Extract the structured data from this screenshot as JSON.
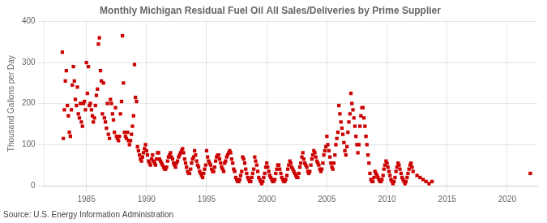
{
  "chart_data": {
    "type": "scatter",
    "title": "Monthly Michigan Residual Fuel Oil All Sales/Deliveries by Prime Supplier",
    "ylabel": "Thousand Gallons per Day",
    "annotation": "Source: U.S. Energy Information Administration",
    "color": "#cc0000",
    "marker": "square",
    "grid": true,
    "xlim": [
      1981.5,
      2022.5
    ],
    "ylim": [
      0,
      400
    ],
    "xticks": [
      1985,
      1990,
      1995,
      2000,
      2005,
      2010,
      2015,
      2020
    ],
    "yticks": [
      0,
      100,
      200,
      300,
      400
    ],
    "x": [
      1983.0,
      1983.08,
      1983.17,
      1983.25,
      1983.33,
      1983.42,
      1983.5,
      1983.58,
      1983.67,
      1983.75,
      1983.83,
      1983.92,
      1984.0,
      1984.08,
      1984.17,
      1984.25,
      1984.33,
      1984.42,
      1984.5,
      1984.58,
      1984.67,
      1984.75,
      1984.83,
      1984.92,
      1985.0,
      1985.08,
      1985.17,
      1985.25,
      1985.33,
      1985.42,
      1985.5,
      1985.58,
      1985.67,
      1985.75,
      1985.83,
      1985.92,
      1986.0,
      1986.08,
      1986.17,
      1986.25,
      1986.33,
      1986.42,
      1986.5,
      1986.58,
      1986.67,
      1986.75,
      1986.83,
      1986.92,
      1987.0,
      1987.08,
      1987.17,
      1987.25,
      1987.33,
      1987.42,
      1987.5,
      1987.58,
      1987.67,
      1987.75,
      1987.83,
      1987.92,
      1988.0,
      1988.08,
      1988.17,
      1988.25,
      1988.33,
      1988.42,
      1988.5,
      1988.58,
      1988.67,
      1988.75,
      1988.83,
      1988.92,
      1989.0,
      1989.08,
      1989.17,
      1989.25,
      1989.33,
      1989.42,
      1989.5,
      1989.58,
      1989.67,
      1989.75,
      1989.83,
      1989.92,
      1990.0,
      1990.08,
      1990.17,
      1990.25,
      1990.33,
      1990.42,
      1990.5,
      1990.58,
      1990.67,
      1990.75,
      1990.83,
      1990.92,
      1991.0,
      1991.08,
      1991.17,
      1991.25,
      1991.33,
      1991.42,
      1991.5,
      1991.58,
      1991.67,
      1991.75,
      1991.83,
      1991.92,
      1992.0,
      1992.08,
      1992.17,
      1992.25,
      1992.33,
      1992.42,
      1992.5,
      1992.58,
      1992.67,
      1992.75,
      1992.83,
      1992.92,
      1993.0,
      1993.08,
      1993.17,
      1993.25,
      1993.33,
      1993.42,
      1993.5,
      1993.58,
      1993.67,
      1993.75,
      1993.83,
      1993.92,
      1994.0,
      1994.08,
      1994.17,
      1994.25,
      1994.33,
      1994.42,
      1994.5,
      1994.58,
      1994.67,
      1994.75,
      1994.83,
      1994.92,
      1995.0,
      1995.08,
      1995.17,
      1995.25,
      1995.33,
      1995.42,
      1995.5,
      1995.58,
      1995.67,
      1995.75,
      1995.83,
      1995.92,
      1996.0,
      1996.08,
      1996.17,
      1996.25,
      1996.33,
      1996.42,
      1996.5,
      1996.58,
      1996.67,
      1996.75,
      1996.83,
      1996.92,
      1997.0,
      1997.08,
      1997.17,
      1997.25,
      1997.33,
      1997.42,
      1997.5,
      1997.58,
      1997.67,
      1997.75,
      1997.83,
      1997.92,
      1998.0,
      1998.08,
      1998.17,
      1998.25,
      1998.33,
      1998.42,
      1998.5,
      1998.58,
      1998.67,
      1998.75,
      1998.83,
      1998.92,
      1999.0,
      1999.08,
      1999.17,
      1999.25,
      1999.33,
      1999.42,
      1999.5,
      1999.58,
      1999.67,
      1999.75,
      1999.83,
      1999.92,
      2000.0,
      2000.08,
      2000.17,
      2000.25,
      2000.33,
      2000.42,
      2000.5,
      2000.58,
      2000.67,
      2000.75,
      2000.83,
      2000.92,
      2001.0,
      2001.08,
      2001.17,
      2001.25,
      2001.33,
      2001.42,
      2001.5,
      2001.58,
      2001.67,
      2001.75,
      2001.83,
      2001.92,
      2002.0,
      2002.08,
      2002.17,
      2002.25,
      2002.33,
      2002.42,
      2002.5,
      2002.58,
      2002.67,
      2002.75,
      2002.83,
      2002.92,
      2003.0,
      2003.08,
      2003.17,
      2003.25,
      2003.33,
      2003.42,
      2003.5,
      2003.58,
      2003.67,
      2003.75,
      2003.83,
      2003.92,
      2004.0,
      2004.08,
      2004.17,
      2004.25,
      2004.33,
      2004.42,
      2004.5,
      2004.58,
      2004.67,
      2004.75,
      2004.83,
      2004.92,
      2005.0,
      2005.08,
      2005.17,
      2005.25,
      2005.33,
      2005.42,
      2005.5,
      2005.58,
      2005.67,
      2005.75,
      2005.83,
      2005.92,
      2006.0,
      2006.08,
      2006.17,
      2006.25,
      2006.33,
      2006.42,
      2006.5,
      2006.58,
      2006.67,
      2006.75,
      2006.83,
      2006.92,
      2007.0,
      2007.08,
      2007.17,
      2007.25,
      2007.33,
      2007.42,
      2007.5,
      2007.58,
      2007.67,
      2007.75,
      2007.83,
      2007.92,
      2008.0,
      2008.08,
      2008.17,
      2008.25,
      2008.33,
      2008.42,
      2008.5,
      2008.58,
      2008.67,
      2008.75,
      2008.83,
      2008.92,
      2009.0,
      2009.08,
      2009.17,
      2009.25,
      2009.33,
      2009.42,
      2009.5,
      2009.58,
      2009.67,
      2009.75,
      2009.83,
      2009.92,
      2010.0,
      2010.08,
      2010.17,
      2010.25,
      2010.33,
      2010.42,
      2010.5,
      2010.58,
      2010.67,
      2010.75,
      2010.83,
      2010.92,
      2011.0,
      2011.08,
      2011.17,
      2011.25,
      2011.33,
      2011.42,
      2011.5,
      2011.58,
      2011.67,
      2011.75,
      2011.83,
      2011.92,
      2012.0,
      2012.08,
      2012.17,
      2012.5,
      2012.75,
      2013.0,
      2013.25,
      2013.5,
      2013.75,
      2021.92
    ],
    "values": [
      325,
      115,
      185,
      255,
      280,
      195,
      170,
      130,
      120,
      185,
      245,
      290,
      255,
      210,
      195,
      240,
      175,
      165,
      200,
      155,
      145,
      200,
      205,
      185,
      300,
      225,
      290,
      195,
      200,
      185,
      170,
      155,
      165,
      195,
      220,
      235,
      345,
      360,
      280,
      255,
      175,
      250,
      165,
      155,
      140,
      200,
      125,
      115,
      210,
      200,
      175,
      160,
      130,
      190,
      120,
      115,
      110,
      120,
      175,
      205,
      365,
      250,
      130,
      120,
      115,
      130,
      110,
      100,
      110,
      125,
      145,
      170,
      295,
      215,
      205,
      95,
      85,
      75,
      65,
      60,
      70,
      80,
      90,
      100,
      85,
      75,
      60,
      55,
      50,
      65,
      75,
      60,
      55,
      50,
      65,
      80,
      80,
      65,
      60,
      55,
      50,
      45,
      40,
      40,
      45,
      60,
      70,
      75,
      80,
      70,
      65,
      55,
      50,
      45,
      55,
      60,
      70,
      75,
      80,
      85,
      90,
      80,
      65,
      55,
      45,
      35,
      30,
      30,
      40,
      55,
      65,
      70,
      85,
      75,
      60,
      50,
      45,
      35,
      30,
      25,
      20,
      30,
      40,
      50,
      85,
      70,
      60,
      55,
      50,
      40,
      35,
      35,
      45,
      60,
      70,
      75,
      75,
      65,
      55,
      45,
      40,
      35,
      55,
      60,
      70,
      75,
      80,
      85,
      80,
      65,
      55,
      40,
      35,
      20,
      15,
      10,
      10,
      15,
      25,
      35,
      70,
      65,
      55,
      40,
      30,
      20,
      15,
      10,
      10,
      20,
      30,
      40,
      70,
      60,
      50,
      35,
      20,
      15,
      10,
      5,
      10,
      20,
      30,
      45,
      55,
      45,
      35,
      25,
      20,
      15,
      10,
      10,
      15,
      30,
      40,
      50,
      50,
      40,
      30,
      20,
      15,
      10,
      10,
      15,
      25,
      40,
      50,
      60,
      55,
      45,
      40,
      35,
      30,
      25,
      20,
      20,
      30,
      45,
      55,
      70,
      80,
      65,
      55,
      50,
      45,
      35,
      30,
      35,
      50,
      65,
      75,
      85,
      80,
      70,
      60,
      55,
      50,
      40,
      35,
      40,
      55,
      75,
      85,
      95,
      120,
      100,
      85,
      70,
      55,
      45,
      40,
      55,
      75,
      100,
      115,
      130,
      195,
      175,
      155,
      140,
      125,
      105,
      85,
      75,
      95,
      130,
      155,
      175,
      225,
      200,
      185,
      165,
      145,
      120,
      100,
      80,
      100,
      145,
      170,
      190,
      190,
      165,
      145,
      120,
      100,
      75,
      55,
      30,
      15,
      10,
      10,
      20,
      35,
      30,
      25,
      20,
      15,
      10,
      10,
      15,
      25,
      40,
      50,
      60,
      55,
      45,
      35,
      25,
      15,
      10,
      5,
      10,
      20,
      35,
      45,
      55,
      50,
      40,
      30,
      20,
      15,
      10,
      5,
      10,
      20,
      30,
      40,
      50,
      55,
      45,
      35,
      25,
      20,
      15,
      10,
      5,
      10,
      30
    ]
  }
}
